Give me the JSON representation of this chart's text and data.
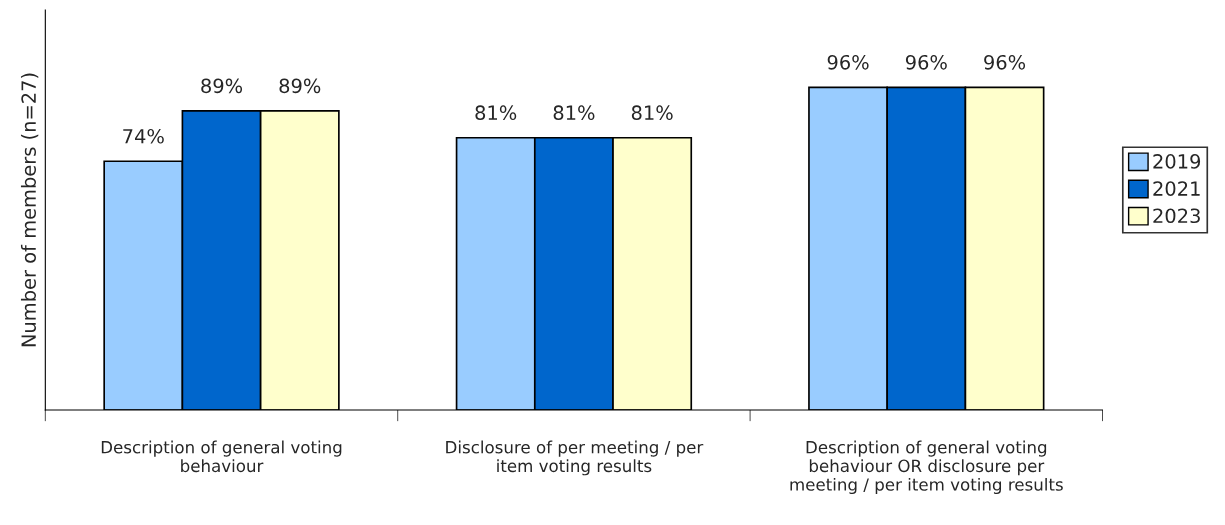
{
  "chart_data": {
    "type": "bar",
    "ylabel": "Number of members (n=27)",
    "categories": [
      "Description of general voting\nbehaviour",
      "Disclosure of per meeting / per\nitem voting results",
      "Description of general voting\nbehaviour OR disclosure per\nmeeting / per item voting results"
    ],
    "series": [
      {
        "name": "2019",
        "color": "#99ccff",
        "values": [
          74,
          81,
          96
        ],
        "value_labels": [
          "74%",
          "81%",
          "96%"
        ]
      },
      {
        "name": "2021",
        "color": "#0066cc",
        "values": [
          89,
          81,
          96
        ],
        "value_labels": [
          "89%",
          "81%",
          "96%"
        ]
      },
      {
        "name": "2023",
        "color": "#ffffcc",
        "values": [
          89,
          81,
          96
        ],
        "value_labels": [
          "89%",
          "81%",
          "96%"
        ]
      }
    ],
    "ylim": [
      0,
      119
    ],
    "tick_labels": "x",
    "grid": false,
    "legend": "right"
  }
}
